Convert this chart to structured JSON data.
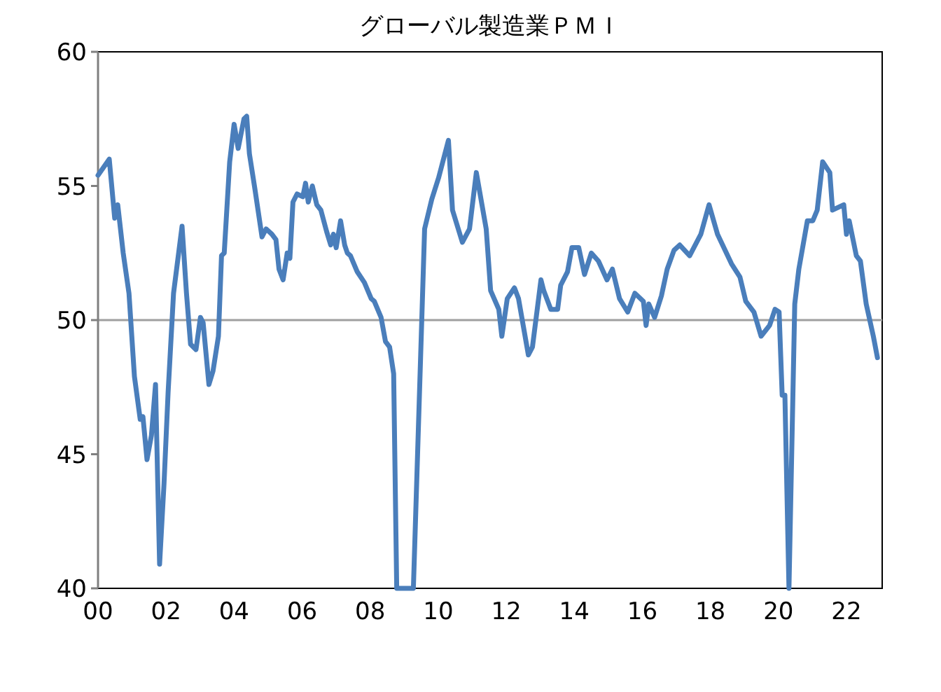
{
  "chart_data": {
    "type": "line",
    "title": "グローバル製造業ＰＭＩ",
    "x": [
      2000.0,
      2000.33,
      2000.49,
      2000.58,
      2000.74,
      2000.91,
      2001.07,
      2001.24,
      2001.32,
      2001.44,
      2001.57,
      2001.69,
      2001.81,
      2001.94,
      2002.06,
      2002.22,
      2002.47,
      2002.6,
      2002.72,
      2002.88,
      2003.01,
      2003.09,
      2003.26,
      2003.38,
      2003.54,
      2003.63,
      2003.71,
      2003.87,
      2004.0,
      2004.12,
      2004.29,
      2004.37,
      2004.45,
      2004.61,
      2004.82,
      2004.94,
      2005.11,
      2005.23,
      2005.32,
      2005.44,
      2005.56,
      2005.64,
      2005.73,
      2005.85,
      2006.02,
      2006.1,
      2006.18,
      2006.3,
      2006.43,
      2006.55,
      2006.72,
      2006.84,
      2006.92,
      2007.0,
      2007.13,
      2007.25,
      2007.33,
      2007.42,
      2007.62,
      2007.83,
      2008.03,
      2008.12,
      2008.32,
      2008.45,
      2008.57,
      2008.69,
      2008.78,
      2009.27,
      2009.6,
      2009.81,
      2010.01,
      2010.3,
      2010.42,
      2010.71,
      2010.92,
      2011.12,
      2011.41,
      2011.54,
      2011.78,
      2011.87,
      2012.03,
      2012.24,
      2012.36,
      2012.65,
      2012.77,
      2013.02,
      2013.1,
      2013.31,
      2013.51,
      2013.6,
      2013.8,
      2013.93,
      2014.13,
      2014.3,
      2014.5,
      2014.71,
      2014.96,
      2015.12,
      2015.33,
      2015.57,
      2015.78,
      2016.03,
      2016.11,
      2016.19,
      2016.36,
      2016.56,
      2016.73,
      2016.93,
      2017.1,
      2017.39,
      2017.72,
      2017.96,
      2018.21,
      2018.62,
      2018.87,
      2019.04,
      2019.28,
      2019.49,
      2019.74,
      2019.9,
      2020.02,
      2020.11,
      2020.19,
      2020.31,
      2020.48,
      2020.6,
      2020.85,
      2021.01,
      2021.14,
      2021.3,
      2021.51,
      2021.59,
      2021.92,
      2022.0,
      2022.08,
      2022.29,
      2022.41,
      2022.58,
      2022.79,
      2022.91
    ],
    "series": [
      {
        "color": "#4a7ebb",
        "values": [
          55.4,
          56.0,
          53.8,
          54.3,
          52.5,
          51.0,
          47.9,
          46.3,
          46.4,
          44.8,
          45.7,
          47.6,
          40.9,
          43.9,
          47.3,
          51.0,
          53.5,
          51.0,
          49.1,
          48.9,
          50.1,
          49.9,
          47.6,
          48.1,
          49.4,
          52.4,
          52.5,
          55.9,
          57.3,
          56.4,
          57.5,
          57.6,
          56.2,
          54.9,
          53.1,
          53.4,
          53.2,
          53.0,
          51.9,
          51.5,
          52.5,
          52.3,
          54.4,
          54.7,
          54.6,
          55.1,
          54.4,
          55.0,
          54.3,
          54.1,
          53.3,
          52.8,
          53.2,
          52.7,
          53.7,
          52.8,
          52.5,
          52.4,
          51.8,
          51.4,
          50.8,
          50.7,
          50.1,
          49.2,
          49.0,
          48.0,
          40.0,
          40.0,
          53.4,
          54.5,
          55.3,
          56.7,
          54.1,
          52.9,
          53.4,
          55.5,
          53.4,
          51.1,
          50.4,
          49.4,
          50.8,
          51.2,
          50.8,
          48.7,
          49.0,
          51.5,
          51.1,
          50.4,
          50.4,
          51.3,
          51.8,
          52.7,
          52.7,
          51.7,
          52.5,
          52.2,
          51.5,
          51.9,
          50.8,
          50.3,
          51.0,
          50.7,
          49.8,
          50.6,
          50.1,
          50.9,
          51.9,
          52.6,
          52.8,
          52.4,
          53.2,
          54.3,
          53.2,
          52.1,
          51.6,
          50.7,
          50.3,
          49.4,
          49.8,
          50.4,
          50.3,
          47.2,
          47.2,
          40.0,
          50.6,
          51.9,
          53.7,
          53.7,
          54.1,
          55.9,
          55.5,
          54.1,
          54.3,
          53.2,
          53.7,
          52.4,
          52.2,
          50.6,
          49.4,
          48.6
        ]
      }
    ],
    "xlim": [
      2000,
      2023.05
    ],
    "xticks": [
      {
        "value": 2000,
        "label": "00"
      },
      {
        "value": 2002,
        "label": "02"
      },
      {
        "value": 2004,
        "label": "04"
      },
      {
        "value": 2006,
        "label": "06"
      },
      {
        "value": 2008,
        "label": "08"
      },
      {
        "value": 2010,
        "label": "10"
      },
      {
        "value": 2012,
        "label": "12"
      },
      {
        "value": 2014,
        "label": "14"
      },
      {
        "value": 2016,
        "label": "16"
      },
      {
        "value": 2018,
        "label": "18"
      },
      {
        "value": 2020,
        "label": "20"
      },
      {
        "value": 2022,
        "label": "22"
      }
    ],
    "ylim": [
      40,
      60
    ],
    "yticks": [
      40,
      45,
      50,
      55,
      60
    ],
    "ref_lines": [
      {
        "axis": "y",
        "value": 50,
        "color": "#a0a0a0"
      }
    ],
    "grid": false,
    "marker": "none",
    "line_style": "solid"
  }
}
